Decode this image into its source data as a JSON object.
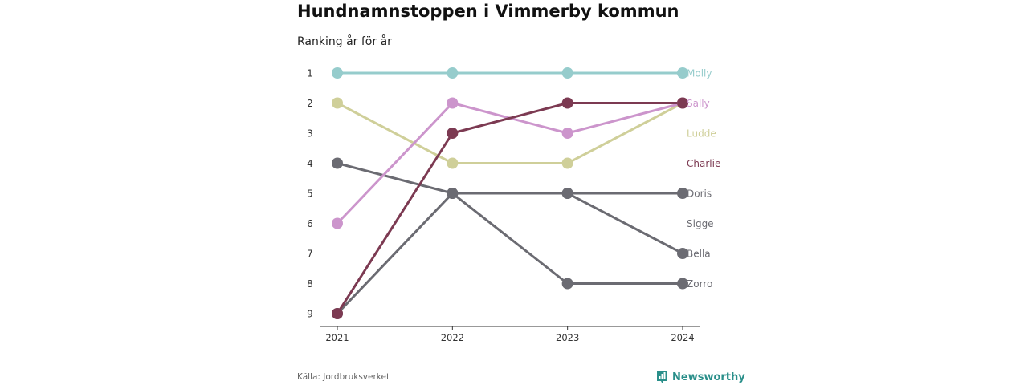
{
  "title": "Hundnamnstoppen i Vimmerby kommun",
  "subtitle": "Ranking år för år",
  "source": "Källa: Jordbruksverket",
  "brand": "Newsworthy",
  "colors": {
    "brand": "#2a8f8a",
    "axis": "#333333",
    "tick_text": "#333333"
  },
  "chart_data": {
    "type": "line",
    "x": [
      "2021",
      "2022",
      "2023",
      "2024"
    ],
    "y_ticks": [
      1,
      2,
      3,
      4,
      5,
      6,
      7,
      8,
      9
    ],
    "ylim": [
      1,
      9
    ],
    "y_inverted": true,
    "grid": false,
    "legend": "labels at line ends (right)",
    "series": [
      {
        "name": "Bella",
        "color": "#6b6b72",
        "values": [
          4,
          5,
          5,
          7
        ]
      },
      {
        "name": "Zorro",
        "color": "#6b6b72",
        "values": [
          9,
          5,
          8,
          8
        ]
      },
      {
        "name": "Doris",
        "color": "#6b6b72",
        "values": [
          null,
          5,
          5,
          5
        ]
      },
      {
        "name": "Sigge",
        "color": "#6b6b72",
        "values": [
          null,
          null,
          null,
          null
        ]
      },
      {
        "name": "Ludde",
        "color": "#cfcf99",
        "values": [
          2,
          4,
          4,
          2
        ]
      },
      {
        "name": "Sally",
        "color": "#cc95cc",
        "values": [
          6,
          2,
          3,
          2
        ]
      },
      {
        "name": "Charlie",
        "color": "#7c3a52",
        "values": [
          9,
          3,
          2,
          2
        ]
      },
      {
        "name": "Molly",
        "color": "#96cccc",
        "values": [
          1,
          1,
          1,
          1
        ]
      }
    ]
  }
}
